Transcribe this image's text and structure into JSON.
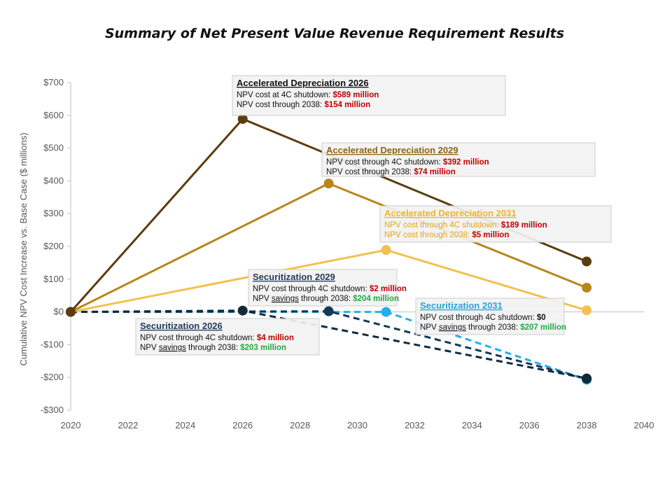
{
  "chart_data": {
    "type": "line",
    "title": "Summary of Net Present Value Revenue Requirement Results",
    "ylabel": "Cumulative NPV Cost Increase vs. Base Case ($ millions)",
    "xlabel": "",
    "xlim": [
      2020,
      2040
    ],
    "ylim": [
      -300,
      700
    ],
    "x_ticks": [
      2020,
      2022,
      2024,
      2026,
      2028,
      2030,
      2032,
      2034,
      2036,
      2038,
      2040
    ],
    "x_tick_labels": [
      "2020",
      "2022",
      "2024",
      "2026",
      "2028",
      "2030",
      "2032",
      "2034",
      "2036",
      "2038",
      "2040"
    ],
    "y_ticks": [
      -300,
      -200,
      -100,
      0,
      100,
      200,
      300,
      400,
      500,
      600,
      700
    ],
    "y_tick_labels": [
      "-$300",
      "-$200",
      "-$100",
      "$0",
      "$100",
      "$200",
      "$300",
      "$400",
      "$500",
      "$600",
      "$700"
    ],
    "grid": false,
    "series": [
      {
        "id": "ad2026",
        "x": [
          2020,
          2026,
          2038
        ],
        "y": [
          0,
          589,
          154
        ],
        "color": "#5a3d0e",
        "dashed": false
      },
      {
        "id": "ad2029",
        "x": [
          2020,
          2029,
          2038
        ],
        "y": [
          0,
          392,
          74
        ],
        "color": "#b8861b",
        "dashed": false
      },
      {
        "id": "ad2031",
        "x": [
          2020,
          2031,
          2038
        ],
        "y": [
          0,
          189,
          5
        ],
        "color": "#f2c14e",
        "dashed": false
      },
      {
        "id": "sec2026",
        "x": [
          2020,
          2026,
          2038
        ],
        "y": [
          0,
          4,
          -203
        ],
        "color": "#0f2a3d",
        "dashed": true
      },
      {
        "id": "sec2029",
        "x": [
          2020,
          2029,
          2038
        ],
        "y": [
          0,
          2,
          -204
        ],
        "color": "#123a56",
        "dashed": true
      },
      {
        "id": "sec2031",
        "x": [
          2020,
          2031,
          2038
        ],
        "y": [
          0,
          0,
          -207
        ],
        "color": "#22b0e8",
        "dashed": true
      }
    ],
    "annotations": [
      {
        "series": "ad2026",
        "title": "Accelerated Depreciation 2026",
        "title_color": "#111111",
        "text_color": "#111111",
        "lines": [
          {
            "prefix": "NPV cost at 4C shutdown: ",
            "prefix_underline": "",
            "middle": "",
            "value": "$589 million",
            "value_color": "#c00000"
          },
          {
            "prefix": "NPV cost through 2038: ",
            "prefix_underline": "",
            "middle": "",
            "value": "$154 million",
            "value_color": "#c00000"
          }
        ]
      },
      {
        "series": "ad2029",
        "title": "Accelerated Depreciation 2029",
        "title_color": "#8a6514",
        "text_color": "#111111",
        "lines": [
          {
            "prefix": "NPV cost through 4C shutdown: ",
            "prefix_underline": "",
            "middle": "",
            "value": "$392 million",
            "value_color": "#c00000"
          },
          {
            "prefix": "NPV cost through 2038: ",
            "prefix_underline": "",
            "middle": "",
            "value": "$74 million",
            "value_color": "#c00000"
          }
        ]
      },
      {
        "series": "ad2031",
        "title": "Accelerated Depreciation 2031",
        "title_color": "#f0b429",
        "text_color": "#e8a317",
        "lines": [
          {
            "prefix": "NPV cost through 4C shutdown: ",
            "prefix_underline": "",
            "middle": "",
            "value": "$189 million",
            "value_color": "#c00000"
          },
          {
            "prefix": "NPV cost through 2038: ",
            "prefix_underline": "",
            "middle": "",
            "value": "$5 million",
            "value_color": "#c00000"
          }
        ]
      },
      {
        "series": "sec2029",
        "title": "Securitization 2029",
        "title_color": "#1f3a5a",
        "text_color": "#111111",
        "lines": [
          {
            "prefix": "NPV cost through 4C shutdown: ",
            "prefix_underline": "",
            "middle": "",
            "value": "$2 million",
            "value_color": "#c00000"
          },
          {
            "prefix": "NPV ",
            "prefix_underline": "savings",
            "middle": " through 2038: ",
            "value": "$204 million",
            "value_color": "#22a845"
          }
        ]
      },
      {
        "series": "sec2026",
        "title": "Securitization 2026",
        "title_color": "#1f3a5a",
        "text_color": "#111111",
        "lines": [
          {
            "prefix": "NPV cost through 4C shutdown: ",
            "prefix_underline": "",
            "middle": "",
            "value": "$4 million",
            "value_color": "#c00000"
          },
          {
            "prefix": "NPV ",
            "prefix_underline": "savings",
            "middle": " through 2038: ",
            "value": "$203 million",
            "value_color": "#22a845"
          }
        ]
      },
      {
        "series": "sec2031",
        "title": "Securitization 2031",
        "title_color": "#22a6dc",
        "text_color": "#111111",
        "lines": [
          {
            "prefix": "NPV cost through 4C shutdown: ",
            "prefix_underline": "",
            "middle": "",
            "value": "$0",
            "value_color": "#111111"
          },
          {
            "prefix": "NPV ",
            "prefix_underline": "savings",
            "middle": " through 2038: ",
            "value": "$207 million",
            "value_color": "#22a845"
          }
        ]
      }
    ]
  }
}
